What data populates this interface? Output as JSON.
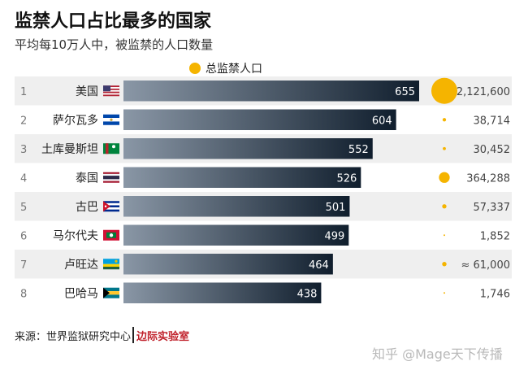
{
  "title": "监禁人口占比最多的国家",
  "subtitle": "平均每10万人中，被监禁的人口数量",
  "legend": {
    "label": "总监禁人口",
    "color": "#f5b400"
  },
  "source": {
    "prefix": "来源：世界监狱研究中心",
    "brand": "边际实验室"
  },
  "watermark": "知乎 @Mage天下传播",
  "colors": {
    "bar_start": "#8a97a6",
    "bar_end": "#101e2d",
    "row_alt": "#efefef",
    "dot": "#f5b400",
    "brand": "#c0202a"
  },
  "chart_data": {
    "type": "bar",
    "orientation": "horizontal",
    "rows": [
      {
        "rank": "1",
        "country": "美国",
        "flag": "us-flag-icon",
        "rate": 655,
        "total_label": "2,121,600",
        "total": 2121600
      },
      {
        "rank": "2",
        "country": "萨尔瓦多",
        "flag": "el-salvador-flag-icon",
        "rate": 604,
        "total_label": "38,714",
        "total": 38714
      },
      {
        "rank": "3",
        "country": "土库曼斯坦",
        "flag": "turkmenistan-flag-icon",
        "rate": 552,
        "total_label": "30,452",
        "total": 30452
      },
      {
        "rank": "4",
        "country": "泰国",
        "flag": "thailand-flag-icon",
        "rate": 526,
        "total_label": "364,288",
        "total": 364288
      },
      {
        "rank": "5",
        "country": "古巴",
        "flag": "cuba-flag-icon",
        "rate": 501,
        "total_label": "57,337",
        "total": 57337
      },
      {
        "rank": "6",
        "country": "马尔代夫",
        "flag": "maldives-flag-icon",
        "rate": 499,
        "total_label": "1,852",
        "total": 1852
      },
      {
        "rank": "7",
        "country": "卢旺达",
        "flag": "rwanda-flag-icon",
        "rate": 464,
        "total_label": "≈ 61,000",
        "total": 61000
      },
      {
        "rank": "8",
        "country": "巴哈马",
        "flag": "bahamas-flag-icon",
        "rate": 438,
        "total_label": "1,746",
        "total": 1746
      }
    ]
  }
}
